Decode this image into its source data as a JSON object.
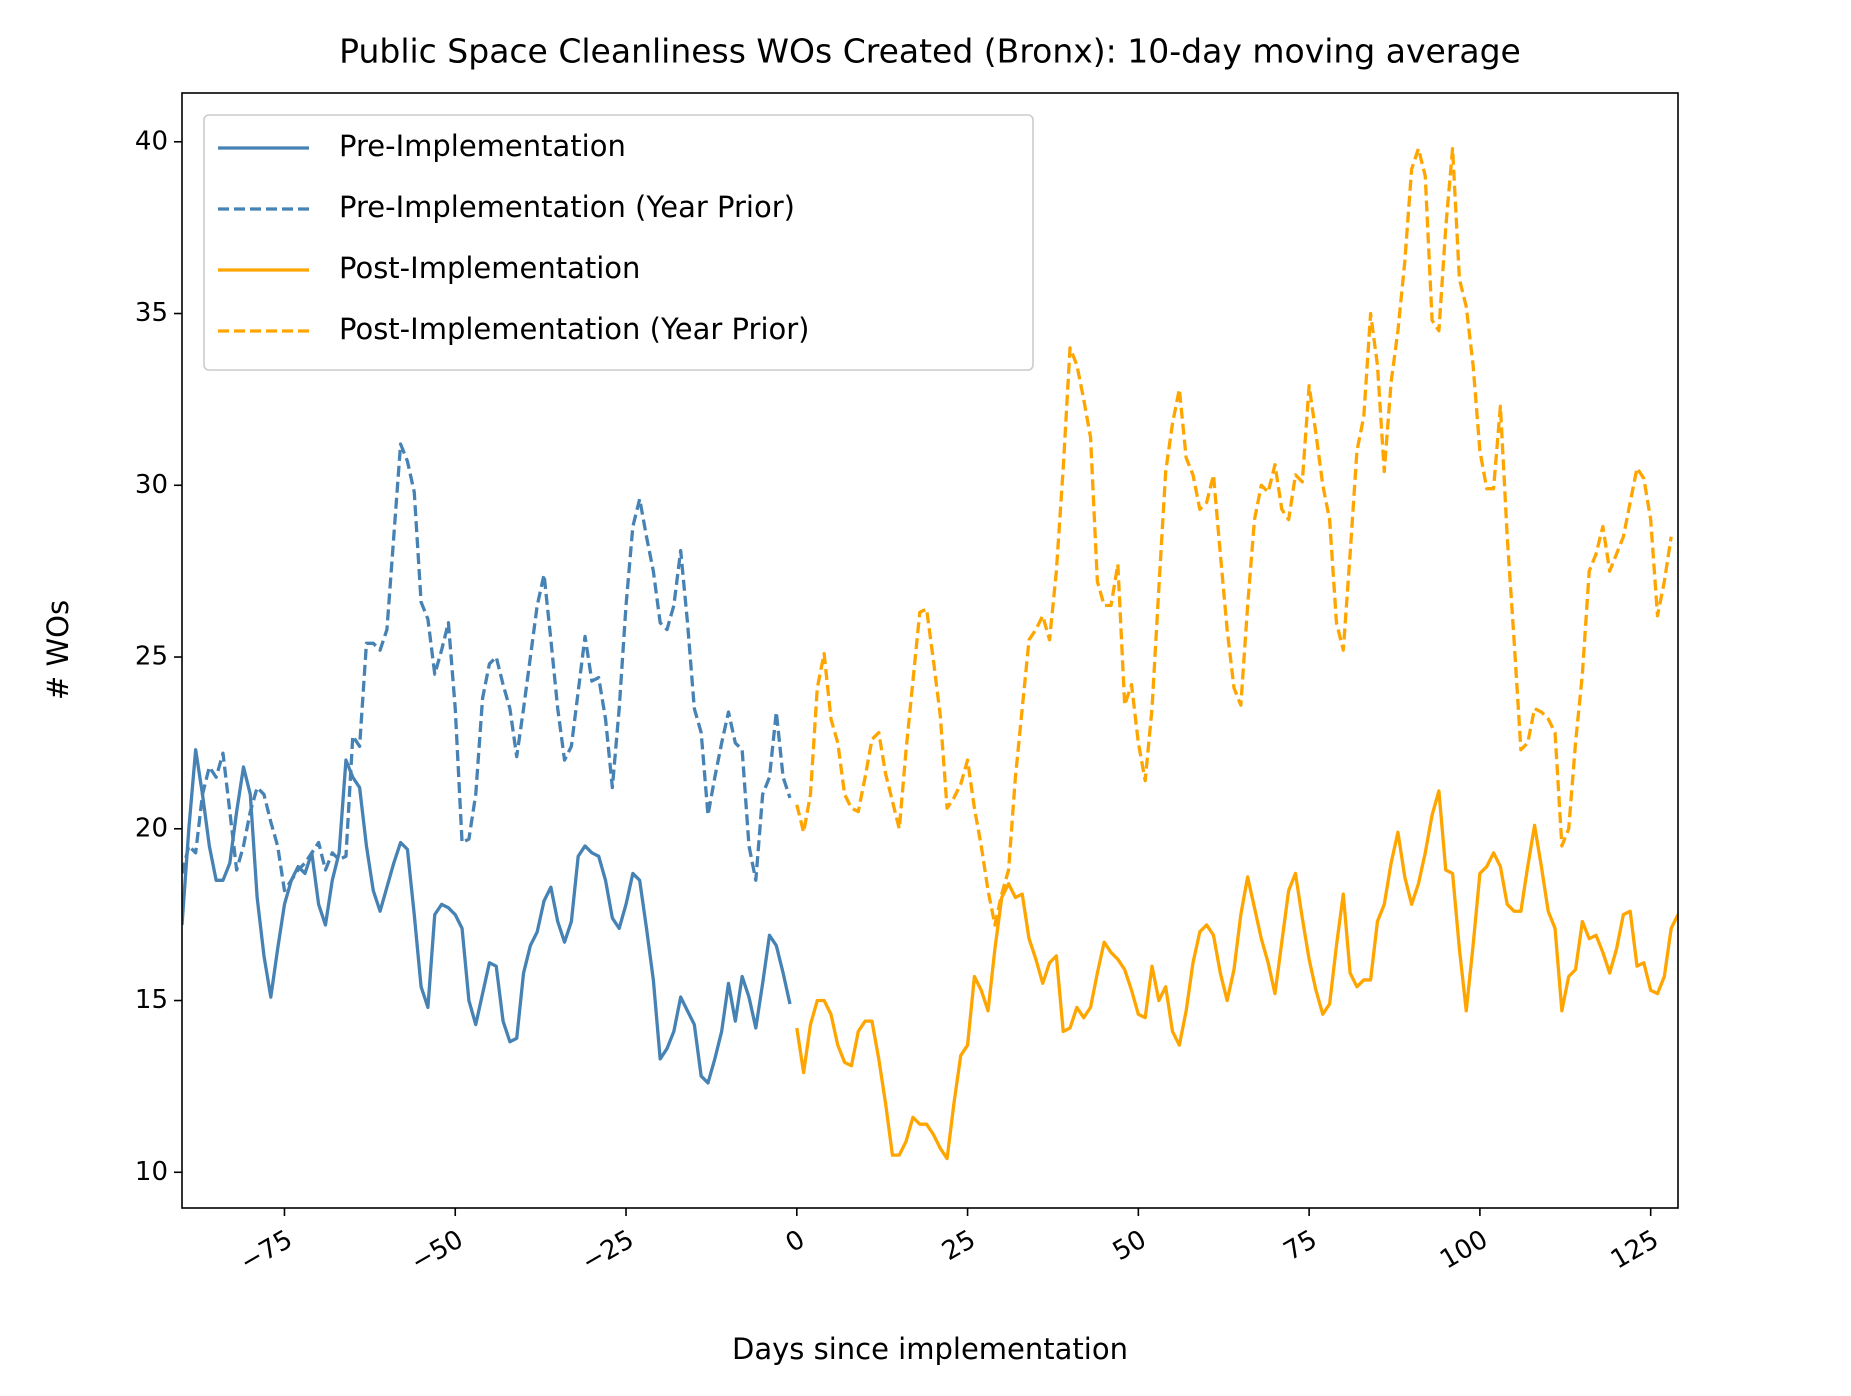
{
  "chart_data": {
    "type": "line",
    "title": "Public Space Cleanliness WOs Created (Bronx): 10-day moving average",
    "x_label": "Days since implementation",
    "y_label": "# WOs",
    "xlim": [
      -90,
      129
    ],
    "ylim": [
      8.96,
      41.42
    ],
    "xticks": [
      {
        "value": -75,
        "label": "−75"
      },
      {
        "value": -50,
        "label": "−50"
      },
      {
        "value": -25,
        "label": "−25"
      },
      0,
      25,
      50,
      75,
      100,
      125
    ],
    "yticks": [
      10,
      15,
      20,
      25,
      30,
      35,
      40
    ],
    "legend": "upper left",
    "series": [
      {
        "name": "Pre-Implementation",
        "color": "#4682b4",
        "linestyle": "solid",
        "x": [
          -90,
          -89,
          -88,
          -87,
          -86,
          -85,
          -84,
          -83,
          -82,
          -81,
          -80,
          -79,
          -78,
          -77,
          -76,
          -75,
          -74,
          -73,
          -72,
          -71,
          -70,
          -69,
          -68,
          -67,
          -66,
          -65,
          -64,
          -63,
          -62,
          -61,
          -60,
          -59,
          -58,
          -57,
          -56,
          -55,
          -54,
          -53,
          -52,
          -51,
          -50,
          -49,
          -48,
          -47,
          -46,
          -45,
          -44,
          -43,
          -42,
          -41,
          -40,
          -39,
          -38,
          -37,
          -36,
          -35,
          -34,
          -33,
          -32,
          -31,
          -30,
          -29,
          -28,
          -27,
          -26,
          -25,
          -24,
          -23,
          -22,
          -21,
          -20,
          -19,
          -18,
          -17,
          -16,
          -15,
          -14,
          -13,
          -12,
          -11,
          -10,
          -9,
          -8,
          -7,
          -6,
          -5,
          -4,
          -3,
          -2,
          -1
        ],
        "values": [
          17.2,
          20,
          22.3,
          21,
          19.5,
          18.5,
          18.5,
          19,
          20.5,
          21.8,
          21,
          18,
          16.3,
          15.1,
          16.5,
          17.8,
          18.5,
          18.9,
          18.7,
          19.3,
          17.8,
          17.2,
          18.5,
          19.3,
          22,
          21.5,
          21.2,
          19.5,
          18.2,
          17.6,
          18.3,
          19,
          19.6,
          19.4,
          17.5,
          15.4,
          14.8,
          17.5,
          17.8,
          17.7,
          17.5,
          17.1,
          15,
          14.3,
          15.2,
          16.1,
          16,
          14.4,
          13.8,
          13.9,
          15.8,
          16.6,
          17,
          17.9,
          18.3,
          17.3,
          16.7,
          17.3,
          19.2,
          19.5,
          19.3,
          19.2,
          18.5,
          17.4,
          17.1,
          17.8,
          18.7,
          18.5,
          17.1,
          15.6,
          13.3,
          13.6,
          14.1,
          15.1,
          14.7,
          14.3,
          12.8,
          12.6,
          13.3,
          14.1,
          15.5,
          14.4,
          15.7,
          15.1,
          14.2,
          15.5,
          16.9,
          16.6,
          15.8,
          14.9
        ]
      },
      {
        "name": "Pre-Implementation (Year Prior)",
        "color": "#4682b4",
        "linestyle": "dashed",
        "x": [
          -90,
          -89,
          -88,
          -87,
          -86,
          -85,
          -84,
          -83,
          -82,
          -81,
          -80,
          -79,
          -78,
          -77,
          -76,
          -75,
          -74,
          -73,
          -72,
          -71,
          -70,
          -69,
          -68,
          -67,
          -66,
          -65,
          -64,
          -63,
          -62,
          -61,
          -60,
          -59,
          -58,
          -57,
          -56,
          -55,
          -54,
          -53,
          -52,
          -51,
          -50,
          -49,
          -48,
          -47,
          -46,
          -45,
          -44,
          -43,
          -42,
          -41,
          -40,
          -39,
          -38,
          -37,
          -36,
          -35,
          -34,
          -33,
          -32,
          -31,
          -30,
          -29,
          -28,
          -27,
          -26,
          -25,
          -24,
          -23,
          -22,
          -21,
          -20,
          -19,
          -18,
          -17,
          -16,
          -15,
          -14,
          -13,
          -12,
          -11,
          -10,
          -9,
          -8,
          -7,
          -6,
          -5,
          -4,
          -3,
          -2,
          -1
        ],
        "values": [
          18.7,
          19.5,
          19.3,
          21,
          21.8,
          21.5,
          22.2,
          20.5,
          18.8,
          19.5,
          20.5,
          21.2,
          21,
          20.2,
          19.5,
          18.2,
          18.5,
          18.8,
          19,
          19.3,
          19.6,
          18.8,
          19.3,
          19.1,
          19.2,
          22.7,
          22.4,
          25.4,
          25.4,
          25.2,
          25.8,
          28.5,
          31.2,
          30.7,
          29.8,
          26.6,
          26.1,
          24.5,
          25.2,
          26,
          23.5,
          19.6,
          19.7,
          21,
          23.8,
          24.8,
          25,
          24.2,
          23.5,
          22.1,
          23.5,
          25,
          26.5,
          27.4,
          25.5,
          23.5,
          22,
          22.4,
          24,
          25.6,
          24.3,
          24.4,
          23.2,
          21.2,
          23.5,
          26.5,
          28.8,
          29.6,
          28.5,
          27.5,
          26,
          25.8,
          26.5,
          28.1,
          26,
          23.5,
          22.8,
          20.4,
          21.5,
          22.5,
          23.4,
          22.5,
          22.3,
          19.5,
          18.5,
          21,
          21.5,
          23.4,
          21.5,
          20.9
        ]
      },
      {
        "name": "Post-Implementation",
        "color": "#ffa500",
        "linestyle": "solid",
        "x": [
          0,
          1,
          2,
          3,
          4,
          5,
          6,
          7,
          8,
          9,
          10,
          11,
          12,
          13,
          14,
          15,
          16,
          17,
          18,
          19,
          20,
          21,
          22,
          23,
          24,
          25,
          26,
          27,
          28,
          29,
          30,
          31,
          32,
          33,
          34,
          35,
          36,
          37,
          38,
          39,
          40,
          41,
          42,
          43,
          44,
          45,
          46,
          47,
          48,
          49,
          50,
          51,
          52,
          53,
          54,
          55,
          56,
          57,
          58,
          59,
          60,
          61,
          62,
          63,
          64,
          65,
          66,
          67,
          68,
          69,
          70,
          71,
          72,
          73,
          74,
          75,
          76,
          77,
          78,
          79,
          80,
          81,
          82,
          83,
          84,
          85,
          86,
          87,
          88,
          89,
          90,
          91,
          92,
          93,
          94,
          95,
          96,
          97,
          98,
          99,
          100,
          101,
          102,
          103,
          104,
          105,
          106,
          107,
          108,
          109,
          110,
          111,
          112,
          113,
          114,
          115,
          116,
          117,
          118,
          119,
          120,
          121,
          122,
          123,
          124,
          125,
          126,
          127,
          128,
          129
        ],
        "values": [
          14.2,
          12.9,
          14.3,
          15,
          15,
          14.6,
          13.7,
          13.2,
          13.1,
          14.1,
          14.4,
          14.4,
          13.3,
          12,
          10.5,
          10.5,
          10.9,
          11.6,
          11.4,
          11.4,
          11.1,
          10.7,
          10.4,
          12,
          13.4,
          13.7,
          15.7,
          15.3,
          14.7,
          16.5,
          18,
          18.4,
          18,
          18.1,
          16.8,
          16.2,
          15.5,
          16.1,
          16.3,
          14.1,
          14.2,
          14.8,
          14.5,
          14.8,
          15.8,
          16.7,
          16.4,
          16.2,
          15.9,
          15.3,
          14.6,
          14.5,
          16,
          15,
          15.4,
          14.1,
          13.7,
          14.7,
          16.1,
          17,
          17.2,
          16.9,
          15.8,
          15,
          15.9,
          17.5,
          18.6,
          17.7,
          16.8,
          16.1,
          15.2,
          16.7,
          18.2,
          18.7,
          17.4,
          16.2,
          15.3,
          14.6,
          14.9,
          16.6,
          18.1,
          15.8,
          15.4,
          15.6,
          15.6,
          17.3,
          17.8,
          19,
          19.9,
          18.6,
          17.8,
          18.4,
          19.3,
          20.4,
          21.1,
          18.8,
          18.7,
          16.5,
          14.7,
          16.6,
          18.7,
          18.9,
          19.3,
          18.9,
          17.8,
          17.6,
          17.6,
          18.9,
          20.1,
          18.9,
          17.6,
          17.1,
          14.7,
          15.7,
          15.9,
          17.3,
          16.8,
          16.9,
          16.4,
          15.8,
          16.5,
          17.5,
          17.6,
          16,
          16.1,
          15.3,
          15.2,
          15.7,
          17.1,
          17.5
        ]
      },
      {
        "name": "Post-Implementation (Year Prior)",
        "color": "#ffa500",
        "linestyle": "dashed",
        "x": [
          0,
          1,
          2,
          3,
          4,
          5,
          6,
          7,
          8,
          9,
          10,
          11,
          12,
          13,
          14,
          15,
          16,
          17,
          18,
          19,
          20,
          21,
          22,
          23,
          24,
          25,
          26,
          27,
          28,
          29,
          30,
          31,
          32,
          33,
          34,
          35,
          36,
          37,
          38,
          39,
          40,
          41,
          42,
          43,
          44,
          45,
          46,
          47,
          48,
          49,
          50,
          51,
          52,
          53,
          54,
          55,
          56,
          57,
          58,
          59,
          60,
          61,
          62,
          63,
          64,
          65,
          66,
          67,
          68,
          69,
          70,
          71,
          72,
          73,
          74,
          75,
          76,
          77,
          78,
          79,
          80,
          81,
          82,
          83,
          84,
          85,
          86,
          87,
          88,
          89,
          90,
          91,
          92,
          93,
          94,
          95,
          96,
          97,
          98,
          99,
          100,
          101,
          102,
          103,
          104,
          105,
          106,
          107,
          108,
          109,
          110,
          111,
          112,
          113,
          114,
          115,
          116,
          117,
          118,
          119,
          120,
          121,
          122,
          123,
          124,
          125,
          126,
          127,
          128
        ],
        "values": [
          20.7,
          19.9,
          21,
          24.1,
          25.1,
          23.2,
          22.5,
          21,
          20.6,
          20.5,
          21.5,
          22.6,
          22.8,
          21.6,
          20.8,
          20,
          22.3,
          24.3,
          26.3,
          26.4,
          24.9,
          23.3,
          20.6,
          20.9,
          21.3,
          22,
          20.6,
          19.5,
          18.2,
          17.2,
          18.1,
          18.8,
          21.5,
          23.5,
          25.5,
          25.8,
          26.2,
          25.5,
          27.5,
          30.5,
          34,
          33.5,
          32.5,
          31.4,
          27.2,
          26.5,
          26.5,
          27.7,
          23.6,
          24.2,
          22.5,
          21.4,
          23.5,
          27,
          30.4,
          31.8,
          32.8,
          30.8,
          30.3,
          29.3,
          29.5,
          30.3,
          28,
          25.8,
          24.1,
          23.6,
          26.5,
          29,
          30,
          29.8,
          30.6,
          29.3,
          29,
          30.3,
          30.1,
          32.9,
          31.5,
          30,
          29,
          26,
          25.2,
          28,
          31,
          32,
          35,
          33.5,
          30.4,
          33,
          34.5,
          36.5,
          39.2,
          39.8,
          39,
          34.8,
          34.5,
          37.5,
          39.8,
          36,
          35.2,
          33.5,
          31,
          29.9,
          29.9,
          32.3,
          28.5,
          25.5,
          22.3,
          22.5,
          23.5,
          23.4,
          23.2,
          22.8,
          19.5,
          20,
          22.5,
          24.5,
          27.5,
          28,
          28.8,
          27.5,
          28,
          28.5,
          29.5,
          30.5,
          30.2,
          29,
          26.2,
          27.2,
          28.5
        ]
      }
    ]
  }
}
